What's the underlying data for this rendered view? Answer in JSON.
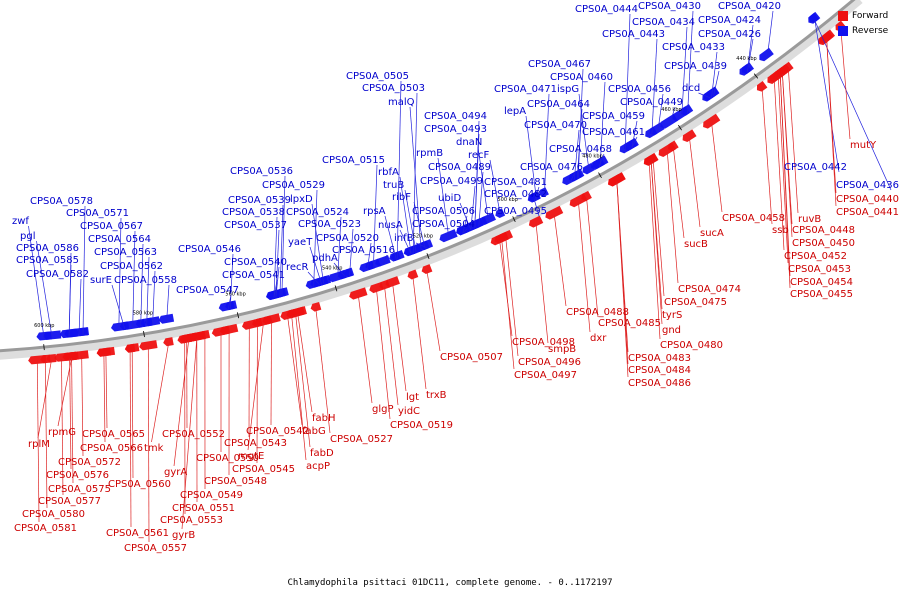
{
  "caption": "Chlamydophila psittaci 01DC11, complete genome. - 0..1172197",
  "legend": [
    {
      "label": "Forward",
      "color": "#ee1111"
    },
    {
      "label": "Reverse",
      "color": "#1111ee"
    }
  ],
  "colors": {
    "forward": "#ee1111",
    "reverse": "#1111ee",
    "forward_line": "#dd2222",
    "reverse_line": "#2222dd",
    "backbone": "#999999"
  },
  "ticks": [
    "600 kbp",
    "580 kbp",
    "560 kbp",
    "540 kbp",
    "520 kbp",
    "500 kbp",
    "480 kbp",
    "460 kbp",
    "440 kbp"
  ],
  "genes": {
    "reverse": [
      "CPS0A_0444",
      "CPS0A_0430",
      "CPS0A_0420",
      "CPS0A_0434",
      "CPS0A_0424",
      "CPS0A_0443",
      "CPS0A_0426",
      "CPS0A_0433",
      "CPS0A_0467",
      "CPS0A_0439",
      "CPS0A_0505",
      "CPS0A_0460",
      "CPS0A_0471",
      "ispG",
      "CPS0A_0456",
      "CPS0A_0503",
      "malQ",
      "dcd",
      "CPS0A_0464",
      "CPS0A_0449",
      "lepA",
      "CPS0A_0494",
      "CPS0A_0459",
      "CPS0A_0493",
      "CPS0A_0470",
      "CPS0A_0461",
      "dnaN",
      "rpmB",
      "recF",
      "CPS0A_0468",
      "CPS0A_0515",
      "CPS0A_0489",
      "CPS0A_0536",
      "rbfA",
      "CPS0A_0476",
      "CPS0A_0499",
      "CPS0A_0481",
      "truB",
      "CPS0A_0529",
      "CPS0A_0539",
      "ribF",
      "CPS0A_0482",
      "lpxD",
      "ubiD",
      "CPS0A_0495",
      "CPS0A_0578",
      "CPS0A_0538",
      "CPS0A_0524",
      "rpsA",
      "CPS0A_0506",
      "CPS0A_0571",
      "CPS0A_0537",
      "nusA",
      "CPS0A_0504",
      "zwf",
      "CPS0A_0567",
      "CPS0A_0523",
      "infB",
      "CPS0A_0520",
      "pgl",
      "CPS0A_0564",
      "yaeT",
      "CPS0A_0516",
      "CPS0A_0586",
      "CPS0A_0546",
      "CPS0A_0563",
      "pdhA",
      "recR",
      "CPS0A_0585",
      "CPS0A_0540",
      "CPS0A_0562",
      "CPS0A_0582",
      "surE",
      "CPS0A_0541",
      "CPS0A_0558",
      "CPS0A_0547",
      "CPS0A_0442",
      "CPS0A_0436"
    ],
    "forward": [
      "mutY",
      "CPS0A_0440",
      "CPS0A_0441",
      "ruvB",
      "CPS0A_0448",
      "CPS0A_0458",
      "ssb",
      "sucA",
      "CPS0A_0450",
      "sucB",
      "CPS0A_0452",
      "CPS0A_0453",
      "CPS0A_0454",
      "CPS0A_0455",
      "CPS0A_0474",
      "CPS0A_0475",
      "tyrS",
      "CPS0A_0488",
      "CPS0A_0485",
      "gnd",
      "dxr",
      "CPS0A_0480",
      "smpB",
      "CPS0A_0498",
      "CPS0A_0483",
      "CPS0A_0496",
      "CPS0A_0484",
      "CPS0A_0507",
      "CPS0A_0497",
      "CPS0A_0486",
      "trxB",
      "lgt",
      "glgP",
      "yidC",
      "CPS0A_0519",
      "fabH",
      "CPS0A_0527",
      "fabG",
      "CPS0A_0542",
      "rplM",
      "rpmG",
      "CPS0A_0565",
      "CPS0A_0552",
      "CPS0A_0543",
      "fabD",
      "tmk",
      "CPS0A_0566",
      "mgtE",
      "acpP",
      "CPS0A_0572",
      "CPS0A_0550",
      "CPS0A_0545",
      "CPS0A_0576",
      "gyrA",
      "CPS0A_0575",
      "CPS0A_0560",
      "CPS0A_0548",
      "CPS0A_0549",
      "CPS0A_0577",
      "CPS0A_0551",
      "CPS0A_0580",
      "CPS0A_0553",
      "CPS0A_0581",
      "CPS0A_0561",
      "gyrB",
      "CPS0A_0557"
    ]
  }
}
